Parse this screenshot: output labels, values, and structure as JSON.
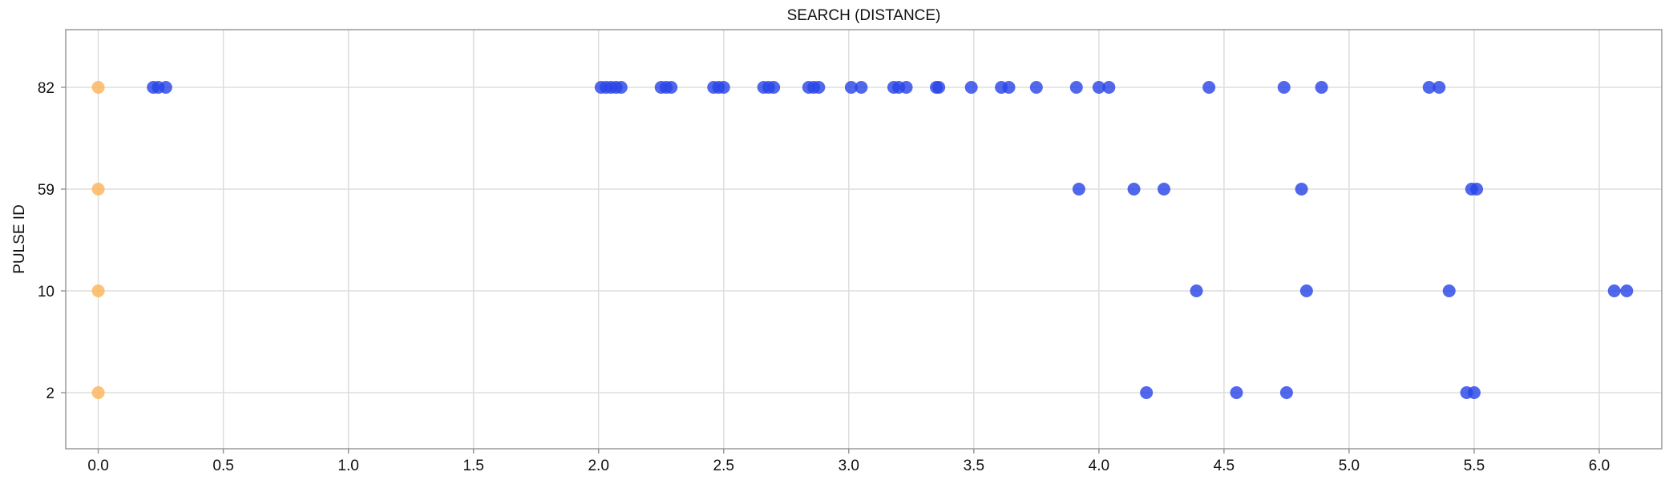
{
  "chart_data": {
    "type": "scatter",
    "title": "SEARCH (DISTANCE)",
    "xlabel": "",
    "ylabel": "PULSE ID",
    "xlim": [
      -0.13,
      6.25
    ],
    "x_ticks": [
      0.0,
      0.5,
      1.0,
      1.5,
      2.0,
      2.5,
      3.0,
      3.5,
      4.0,
      4.5,
      5.0,
      5.5,
      6.0
    ],
    "x_tick_labels": [
      "0.0",
      "0.5",
      "1.0",
      "1.5",
      "2.0",
      "2.5",
      "3.0",
      "3.5",
      "4.0",
      "4.5",
      "5.0",
      "5.5",
      "6.0"
    ],
    "categories": [
      "82",
      "59",
      "10",
      "2"
    ],
    "grid": true,
    "series": [
      {
        "color": "#fbb55a",
        "points": [
          {
            "x": 0.0,
            "y": "82"
          },
          {
            "x": 0.0,
            "y": "59"
          },
          {
            "x": 0.0,
            "y": "10"
          },
          {
            "x": 0.0,
            "y": "2"
          }
        ]
      },
      {
        "color": "#2b45e8",
        "points": [
          {
            "x": 0.22,
            "y": "82"
          },
          {
            "x": 0.24,
            "y": "82"
          },
          {
            "x": 0.27,
            "y": "82"
          },
          {
            "x": 2.01,
            "y": "82"
          },
          {
            "x": 2.03,
            "y": "82"
          },
          {
            "x": 2.05,
            "y": "82"
          },
          {
            "x": 2.07,
            "y": "82"
          },
          {
            "x": 2.09,
            "y": "82"
          },
          {
            "x": 2.25,
            "y": "82"
          },
          {
            "x": 2.27,
            "y": "82"
          },
          {
            "x": 2.29,
            "y": "82"
          },
          {
            "x": 2.46,
            "y": "82"
          },
          {
            "x": 2.48,
            "y": "82"
          },
          {
            "x": 2.5,
            "y": "82"
          },
          {
            "x": 2.66,
            "y": "82"
          },
          {
            "x": 2.68,
            "y": "82"
          },
          {
            "x": 2.7,
            "y": "82"
          },
          {
            "x": 2.84,
            "y": "82"
          },
          {
            "x": 2.86,
            "y": "82"
          },
          {
            "x": 2.88,
            "y": "82"
          },
          {
            "x": 3.01,
            "y": "82"
          },
          {
            "x": 3.05,
            "y": "82"
          },
          {
            "x": 3.18,
            "y": "82"
          },
          {
            "x": 3.2,
            "y": "82"
          },
          {
            "x": 3.23,
            "y": "82"
          },
          {
            "x": 3.35,
            "y": "82"
          },
          {
            "x": 3.36,
            "y": "82"
          },
          {
            "x": 3.49,
            "y": "82"
          },
          {
            "x": 3.61,
            "y": "82"
          },
          {
            "x": 3.64,
            "y": "82"
          },
          {
            "x": 3.75,
            "y": "82"
          },
          {
            "x": 3.91,
            "y": "82"
          },
          {
            "x": 4.0,
            "y": "82"
          },
          {
            "x": 4.04,
            "y": "82"
          },
          {
            "x": 4.44,
            "y": "82"
          },
          {
            "x": 4.74,
            "y": "82"
          },
          {
            "x": 4.89,
            "y": "82"
          },
          {
            "x": 5.32,
            "y": "82"
          },
          {
            "x": 5.36,
            "y": "82"
          },
          {
            "x": 3.92,
            "y": "59"
          },
          {
            "x": 4.14,
            "y": "59"
          },
          {
            "x": 4.26,
            "y": "59"
          },
          {
            "x": 4.81,
            "y": "59"
          },
          {
            "x": 5.49,
            "y": "59"
          },
          {
            "x": 5.51,
            "y": "59"
          },
          {
            "x": 4.39,
            "y": "10"
          },
          {
            "x": 4.83,
            "y": "10"
          },
          {
            "x": 5.4,
            "y": "10"
          },
          {
            "x": 6.06,
            "y": "10"
          },
          {
            "x": 6.11,
            "y": "10"
          },
          {
            "x": 4.19,
            "y": "2"
          },
          {
            "x": 4.55,
            "y": "2"
          },
          {
            "x": 4.75,
            "y": "2"
          },
          {
            "x": 5.47,
            "y": "2"
          },
          {
            "x": 5.5,
            "y": "2"
          }
        ]
      }
    ]
  }
}
